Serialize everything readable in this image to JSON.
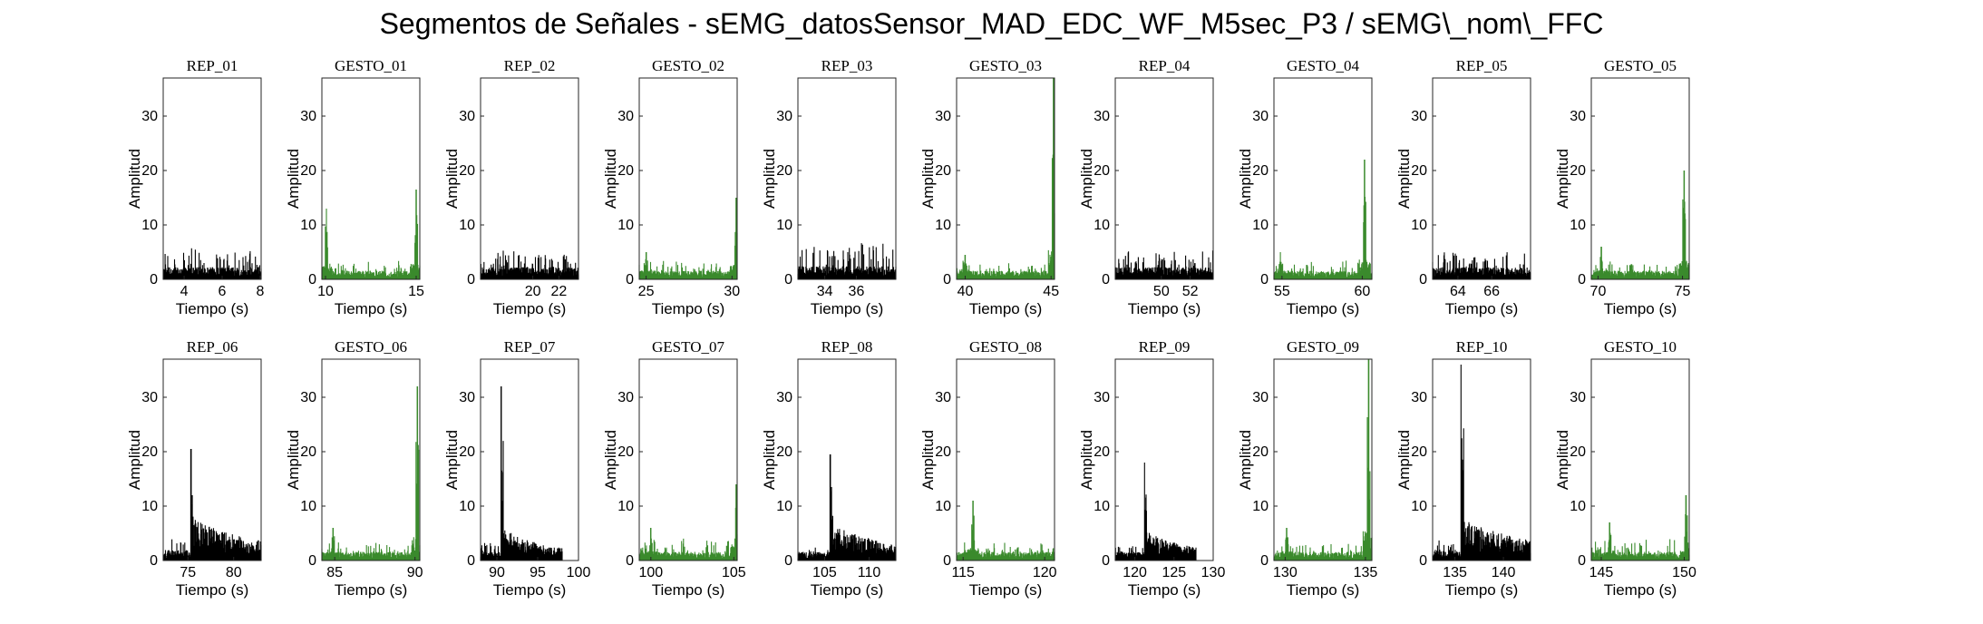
{
  "figure": {
    "title": "Segmentos de Señales - sEMG_datosSensor_MAD_EDC_WF_M5sec_P3 / sEMG\\_nom\\_FFC",
    "colors": {
      "rep": "#000000",
      "gesto": "#3a8a2c",
      "axes": "#262626"
    }
  },
  "chart_data": [
    {
      "type": "line",
      "title": "REP_01",
      "kind": "rep",
      "xlabel": "Tiempo (s)",
      "ylabel": "Amplitud",
      "xlim": [
        2.9,
        8.05
      ],
      "ylim": [
        0,
        37
      ],
      "xticks": [
        4,
        6,
        8
      ],
      "yticks": [
        0,
        10,
        20,
        30
      ],
      "series": [
        {
          "name": "",
          "color": "#000000",
          "x_range": [
            2.9,
            8.05
          ],
          "baseline": 1.4,
          "noise": 1.4,
          "peak_max": 5.8
        }
      ]
    },
    {
      "type": "line",
      "title": "GESTO_01",
      "kind": "gesto",
      "xlabel": "Tiempo (s)",
      "ylabel": "Amplitud",
      "xlim": [
        9.8,
        15.2
      ],
      "ylim": [
        0,
        37
      ],
      "xticks": [
        10,
        15
      ],
      "yticks": [
        0,
        10,
        20,
        30
      ],
      "series": [
        {
          "name": "",
          "color": "#3a8a2c",
          "x_range": [
            9.8,
            15.2
          ],
          "baseline": 1.0,
          "noise": 0.8,
          "spikes": [
            [
              10.05,
              13
            ],
            [
              15.0,
              16.5
            ]
          ]
        }
      ]
    },
    {
      "type": "line",
      "title": "REP_02",
      "kind": "rep",
      "xlabel": "Tiempo (s)",
      "ylabel": "Amplitud",
      "xlim": [
        16.0,
        23.5
      ],
      "ylim": [
        0,
        37
      ],
      "xticks": [
        20,
        22
      ],
      "yticks": [
        0,
        10,
        20,
        30
      ],
      "series": [
        {
          "name": "",
          "color": "#000000",
          "x_range": [
            16.0,
            23.5
          ],
          "baseline": 1.4,
          "noise": 1.4,
          "peak_max": 5.0
        }
      ]
    },
    {
      "type": "line",
      "title": "GESTO_02",
      "kind": "gesto",
      "xlabel": "Tiempo (s)",
      "ylabel": "Amplitud",
      "xlim": [
        24.6,
        30.3
      ],
      "ylim": [
        0,
        37
      ],
      "xticks": [
        25,
        30
      ],
      "yticks": [
        0,
        10,
        20,
        30
      ],
      "series": [
        {
          "name": "",
          "color": "#3a8a2c",
          "x_range": [
            24.6,
            30.3
          ],
          "baseline": 1.0,
          "noise": 0.8,
          "spikes": [
            [
              25.0,
              5
            ],
            [
              30.25,
              15
            ]
          ]
        }
      ]
    },
    {
      "type": "line",
      "title": "REP_03",
      "kind": "rep",
      "xlabel": "Tiempo (s)",
      "ylabel": "Amplitud",
      "xlim": [
        32.3,
        38.5
      ],
      "ylim": [
        0,
        37
      ],
      "xticks": [
        34,
        36
      ],
      "yticks": [
        0,
        10,
        20,
        30
      ],
      "series": [
        {
          "name": "",
          "color": "#000000",
          "x_range": [
            32.3,
            38.5
          ],
          "baseline": 1.5,
          "noise": 1.8,
          "peak_max": 6.8
        }
      ]
    },
    {
      "type": "line",
      "title": "GESTO_03",
      "kind": "gesto",
      "xlabel": "Tiempo (s)",
      "ylabel": "Amplitud",
      "xlim": [
        39.5,
        45.2
      ],
      "ylim": [
        0,
        37
      ],
      "xticks": [
        40,
        45
      ],
      "yticks": [
        0,
        10,
        20,
        30
      ],
      "series": [
        {
          "name": "",
          "color": "#3a8a2c",
          "x_range": [
            39.5,
            45.2
          ],
          "baseline": 1.0,
          "noise": 0.8,
          "spikes": [
            [
              40.0,
              4.5
            ],
            [
              45.15,
              37
            ]
          ]
        }
      ]
    },
    {
      "type": "line",
      "title": "REP_04",
      "kind": "rep",
      "xlabel": "Tiempo (s)",
      "ylabel": "Amplitud",
      "xlim": [
        46.8,
        53.6
      ],
      "ylim": [
        0,
        37
      ],
      "xticks": [
        50,
        52
      ],
      "yticks": [
        0,
        10,
        20,
        30
      ],
      "series": [
        {
          "name": "",
          "color": "#000000",
          "x_range": [
            46.8,
            53.6
          ],
          "baseline": 1.4,
          "noise": 1.3,
          "peak_max": 5.5
        }
      ]
    },
    {
      "type": "line",
      "title": "GESTO_04",
      "kind": "gesto",
      "xlabel": "Tiempo (s)",
      "ylabel": "Amplitud",
      "xlim": [
        54.5,
        60.6
      ],
      "ylim": [
        0,
        37
      ],
      "xticks": [
        55,
        60
      ],
      "yticks": [
        0,
        10,
        20,
        30
      ],
      "series": [
        {
          "name": "",
          "color": "#3a8a2c",
          "x_range": [
            54.5,
            60.6
          ],
          "baseline": 1.0,
          "noise": 0.9,
          "spikes": [
            [
              54.9,
              5
            ],
            [
              60.15,
              22
            ]
          ]
        }
      ]
    },
    {
      "type": "line",
      "title": "REP_05",
      "kind": "rep",
      "xlabel": "Tiempo (s)",
      "ylabel": "Amplitud",
      "xlim": [
        62.5,
        68.3
      ],
      "ylim": [
        0,
        37
      ],
      "xticks": [
        64,
        66
      ],
      "yticks": [
        0,
        10,
        20,
        30
      ],
      "series": [
        {
          "name": "",
          "color": "#000000",
          "x_range": [
            62.5,
            68.3
          ],
          "baseline": 1.4,
          "noise": 1.3,
          "peak_max": 5.0
        }
      ]
    },
    {
      "type": "line",
      "title": "GESTO_05",
      "kind": "gesto",
      "xlabel": "Tiempo (s)",
      "ylabel": "Amplitud",
      "xlim": [
        69.6,
        75.4
      ],
      "ylim": [
        0,
        37
      ],
      "xticks": [
        70,
        75
      ],
      "yticks": [
        0,
        10,
        20,
        30
      ],
      "series": [
        {
          "name": "",
          "color": "#3a8a2c",
          "x_range": [
            69.6,
            75.4
          ],
          "baseline": 1.0,
          "noise": 0.8,
          "spikes": [
            [
              70.2,
              6
            ],
            [
              75.1,
              20
            ]
          ]
        }
      ]
    },
    {
      "type": "line",
      "title": "REP_06",
      "kind": "rep",
      "xlabel": "Tiempo (s)",
      "ylabel": "Amplitud",
      "xlim": [
        72.3,
        83.0
      ],
      "ylim": [
        0,
        37
      ],
      "xticks": [
        75,
        80
      ],
      "yticks": [
        0,
        10,
        20,
        30
      ],
      "series": [
        {
          "name": "",
          "color": "#000000",
          "x_range": [
            72.3,
            83.0
          ],
          "baseline": 1.2,
          "noise": 1.0,
          "burst": {
            "start": 75.3,
            "peak": 20.5,
            "level": 4.5,
            "decay": 2.2
          }
        }
      ]
    },
    {
      "type": "line",
      "title": "GESTO_06",
      "kind": "gesto",
      "xlabel": "Tiempo (s)",
      "ylabel": "Amplitud",
      "xlim": [
        84.2,
        90.3
      ],
      "ylim": [
        0,
        37
      ],
      "xticks": [
        85,
        90
      ],
      "yticks": [
        0,
        10,
        20,
        30
      ],
      "series": [
        {
          "name": "",
          "color": "#3a8a2c",
          "x_range": [
            84.2,
            90.3
          ],
          "baseline": 1.0,
          "noise": 0.9,
          "spikes": [
            [
              84.9,
              6
            ],
            [
              90.15,
              32
            ]
          ]
        }
      ]
    },
    {
      "type": "line",
      "title": "REP_07",
      "kind": "rep",
      "xlabel": "Tiempo (s)",
      "ylabel": "Amplitud",
      "xlim": [
        88.0,
        100.0
      ],
      "ylim": [
        0,
        37
      ],
      "xticks": [
        90,
        95,
        100
      ],
      "yticks": [
        0,
        10,
        20,
        30
      ],
      "series": [
        {
          "name": "",
          "color": "#000000",
          "x_range": [
            88.0,
            98.0
          ],
          "baseline": 1.0,
          "noise": 0.9,
          "burst": {
            "start": 90.5,
            "peak": 32,
            "level": 3.5,
            "decay": 1.5
          }
        }
      ]
    },
    {
      "type": "line",
      "title": "GESTO_07",
      "kind": "gesto",
      "xlabel": "Tiempo (s)",
      "ylabel": "Amplitud",
      "xlim": [
        99.3,
        105.2
      ],
      "ylim": [
        0,
        37
      ],
      "xticks": [
        100,
        105
      ],
      "yticks": [
        0,
        10,
        20,
        30
      ],
      "series": [
        {
          "name": "",
          "color": "#3a8a2c",
          "x_range": [
            99.3,
            105.2
          ],
          "baseline": 1.0,
          "noise": 1.0,
          "spikes": [
            [
              100.0,
              6
            ],
            [
              105.15,
              14
            ]
          ]
        }
      ]
    },
    {
      "type": "line",
      "title": "REP_08",
      "kind": "rep",
      "xlabel": "Tiempo (s)",
      "ylabel": "Amplitud",
      "xlim": [
        102.0,
        113.0
      ],
      "ylim": [
        0,
        37
      ],
      "xticks": [
        105,
        110
      ],
      "yticks": [
        0,
        10,
        20,
        30
      ],
      "series": [
        {
          "name": "",
          "color": "#000000",
          "x_range": [
            102.0,
            113.0
          ],
          "baseline": 1.0,
          "noise": 0.8,
          "burst": {
            "start": 105.6,
            "peak": 19.5,
            "level": 4.0,
            "decay": 2.0
          }
        }
      ]
    },
    {
      "type": "line",
      "title": "GESTO_08",
      "kind": "gesto",
      "xlabel": "Tiempo (s)",
      "ylabel": "Amplitud",
      "xlim": [
        114.6,
        120.6
      ],
      "ylim": [
        0,
        37
      ],
      "xticks": [
        115,
        120
      ],
      "yticks": [
        0,
        10,
        20,
        30
      ],
      "series": [
        {
          "name": "",
          "color": "#3a8a2c",
          "x_range": [
            114.6,
            120.6
          ],
          "baseline": 1.0,
          "noise": 0.8,
          "spikes": [
            [
              115.6,
              11
            ]
          ]
        }
      ]
    },
    {
      "type": "line",
      "title": "REP_09",
      "kind": "rep",
      "xlabel": "Tiempo (s)",
      "ylabel": "Amplitud",
      "xlim": [
        117.5,
        130.0
      ],
      "ylim": [
        0,
        37
      ],
      "xticks": [
        120,
        125,
        130
      ],
      "yticks": [
        0,
        10,
        20,
        30
      ],
      "series": [
        {
          "name": "",
          "color": "#000000",
          "x_range": [
            117.5,
            127.8
          ],
          "baseline": 1.0,
          "noise": 0.6,
          "burst": {
            "start": 121.2,
            "peak": 18,
            "level": 3.0,
            "decay": 1.6
          }
        }
      ]
    },
    {
      "type": "line",
      "title": "GESTO_09",
      "kind": "gesto",
      "xlabel": "Tiempo (s)",
      "ylabel": "Amplitud",
      "xlim": [
        129.3,
        135.4
      ],
      "ylim": [
        0,
        37
      ],
      "xticks": [
        130,
        135
      ],
      "yticks": [
        0,
        10,
        20,
        30
      ],
      "series": [
        {
          "name": "",
          "color": "#3a8a2c",
          "x_range": [
            129.3,
            135.4
          ],
          "baseline": 1.0,
          "noise": 0.8,
          "spikes": [
            [
              130.1,
              6
            ],
            [
              135.2,
              37
            ]
          ]
        }
      ]
    },
    {
      "type": "line",
      "title": "REP_10",
      "kind": "rep",
      "xlabel": "Tiempo (s)",
      "ylabel": "Amplitud",
      "xlim": [
        132.7,
        142.8
      ],
      "ylim": [
        0,
        37
      ],
      "xticks": [
        135,
        140
      ],
      "yticks": [
        0,
        10,
        20,
        30
      ],
      "series": [
        {
          "name": "",
          "color": "#000000",
          "x_range": [
            132.7,
            142.8
          ],
          "baseline": 1.1,
          "noise": 1.0,
          "burst": {
            "start": 135.6,
            "peak": 36,
            "level": 4.5,
            "decay": 2.4
          }
        }
      ]
    },
    {
      "type": "line",
      "title": "GESTO_10",
      "kind": "gesto",
      "xlabel": "Tiempo (s)",
      "ylabel": "Amplitud",
      "xlim": [
        144.4,
        150.3
      ],
      "ylim": [
        0,
        37
      ],
      "xticks": [
        145,
        150
      ],
      "yticks": [
        0,
        10,
        20,
        30
      ],
      "series": [
        {
          "name": "",
          "color": "#3a8a2c",
          "x_range": [
            144.4,
            150.3
          ],
          "baseline": 1.0,
          "noise": 1.0,
          "spikes": [
            [
              145.5,
              7
            ],
            [
              150.1,
              12
            ]
          ]
        }
      ]
    }
  ]
}
